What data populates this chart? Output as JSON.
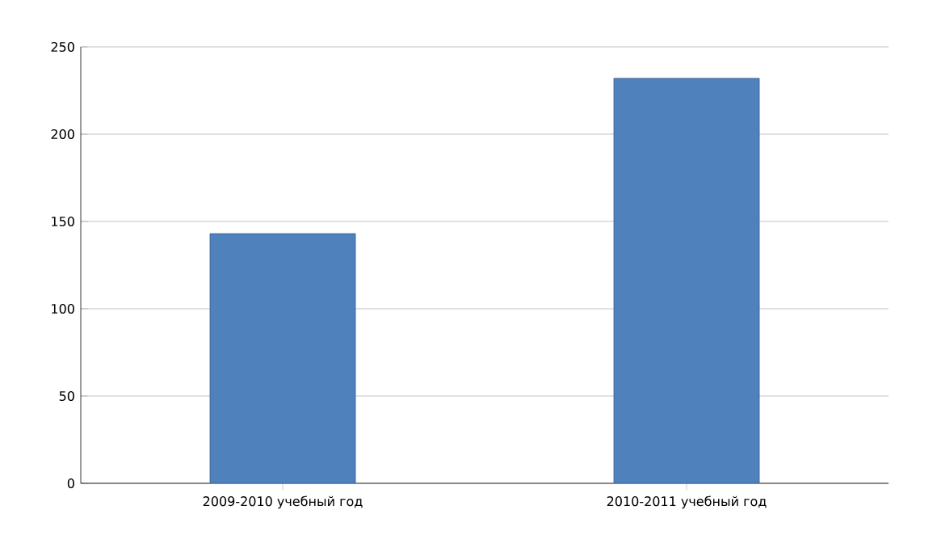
{
  "chart_data": {
    "type": "bar",
    "categories": [
      "2009-2010 учебный год",
      "2010-2011 учебный год"
    ],
    "values": [
      143,
      232
    ],
    "color": "#4f81bd",
    "ylim": [
      0,
      250
    ],
    "yticks": [
      0,
      50,
      100,
      150,
      200,
      250
    ],
    "grid": "y"
  }
}
